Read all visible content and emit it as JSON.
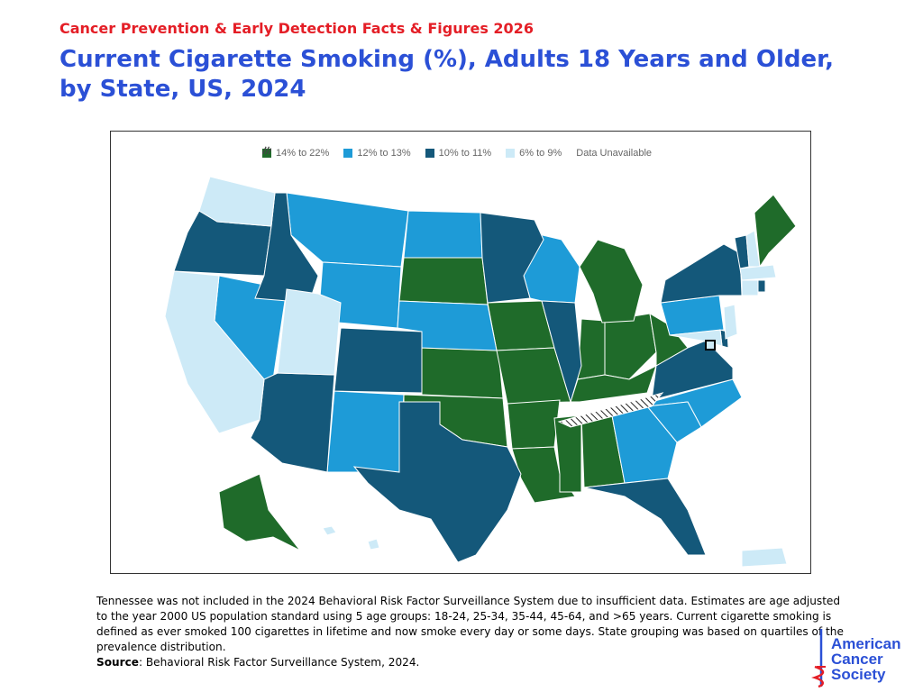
{
  "header": {
    "kicker": "Cancer Prevention & Early Detection Facts & Figures 2026",
    "title": "Current Cigarette Smoking (%), Adults 18 Years and Older, by State, US, 2024"
  },
  "map": {
    "legend": [
      {
        "label": "14% to 22%",
        "color": "#1f6b2a"
      },
      {
        "label": "12% to 13%",
        "color": "#1e9bd7"
      },
      {
        "label": "10% to 11%",
        "color": "#14587a"
      },
      {
        "label": "6% to 9%",
        "color": "#cdeaf7"
      },
      {
        "label": "Data Unavailable",
        "color": "hatched"
      }
    ],
    "categories": {
      "14% to 22%": [
        "Alaska",
        "South Dakota",
        "Kansas",
        "Oklahoma",
        "Iowa",
        "Missouri",
        "Arkansas",
        "Louisiana",
        "Mississippi",
        "Alabama",
        "Indiana",
        "Ohio",
        "Kentucky",
        "West Virginia",
        "Michigan",
        "Maine"
      ],
      "12% to 13%": [
        "Montana",
        "Wyoming",
        "Nevada",
        "New Mexico",
        "North Dakota",
        "Nebraska",
        "Wisconsin",
        "Pennsylvania",
        "North Carolina",
        "South Carolina",
        "Georgia"
      ],
      "10% to 11%": [
        "Oregon",
        "Idaho",
        "Arizona",
        "Colorado",
        "Texas",
        "Minnesota",
        "Illinois",
        "Virginia",
        "Florida",
        "New York",
        "Vermont",
        "Rhode Island",
        "Delaware"
      ],
      "6% to 9%": [
        "Washington",
        "California",
        "Utah",
        "Hawaii",
        "New Hampshire",
        "Massachusetts",
        "Connecticut",
        "New Jersey",
        "Maryland",
        "District of Columbia",
        "Puerto Rico"
      ],
      "Data Unavailable": [
        "Tennessee"
      ]
    }
  },
  "footnote": {
    "text": "Tennessee was not included in the 2024 Behavioral Risk Factor Surveillance System due to insufficient data. Estimates are age adjusted to the year 2000 US population standard using 5 age groups: 18-24, 25-34, 35-44, 45-64, and >65 years. Current cigarette smoking is defined as ever smoked 100 cigarettes in lifetime and now smoke every day or some days. State grouping was based on quartiles of the prevalence distribution.",
    "source_label": "Source",
    "source_text": ": Behavioral Risk Factor Surveillance System, 2024."
  },
  "logo": {
    "line1": "American",
    "line2": "Cancer",
    "line3": "Society",
    "registered": "®",
    "color": "#2b50d6",
    "accent": "#e41e26"
  }
}
